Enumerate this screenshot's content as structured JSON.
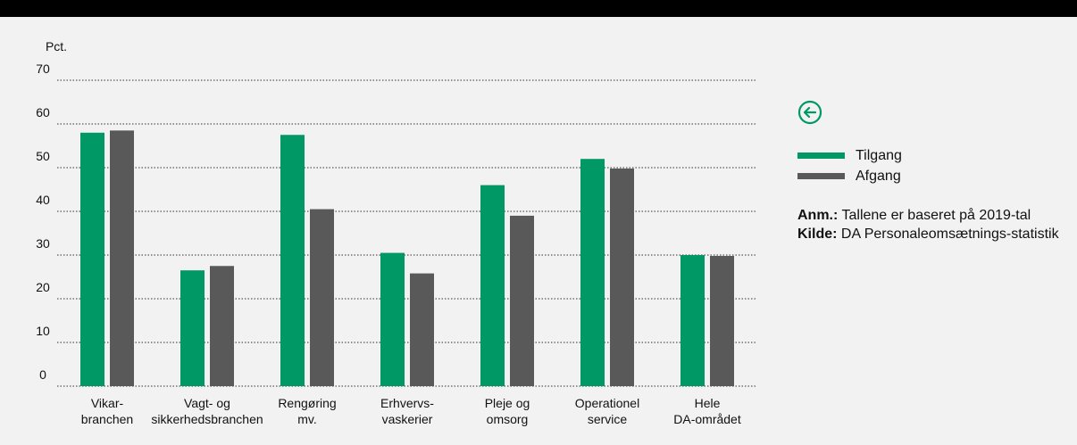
{
  "colors": {
    "tilgang": "#009966",
    "afgang": "#595959",
    "grid": "#333333"
  },
  "icons": {
    "back": "arrow-left-circle-icon"
  },
  "legend": {
    "tilgang_label": "Tilgang",
    "afgang_label": "Afgang"
  },
  "notes": {
    "anm_label": "Anm.:",
    "anm_text": "Tallene er baseret på 2019-tal",
    "kilde_label": "Kilde:",
    "kilde_text": "DA Personaleomsætnings-statistik"
  },
  "chart_data": {
    "type": "bar",
    "ylabel": "Pct.",
    "ylim": [
      0,
      70
    ],
    "yticks": [
      0,
      10,
      20,
      30,
      40,
      50,
      60,
      70
    ],
    "grid": true,
    "legend_position": "right",
    "categories": [
      [
        "Vikar-",
        "branchen"
      ],
      [
        "Vagt- og",
        "sikkerhedsbranchen"
      ],
      [
        "Rengøring",
        "mv."
      ],
      [
        "Erhvervs-",
        "vaskerier"
      ],
      [
        "Pleje og",
        "omsorg"
      ],
      [
        "Operationel",
        "service"
      ],
      [
        "Hele",
        "DA-området"
      ]
    ],
    "series": [
      {
        "name": "Tilgang",
        "values": [
          58,
          26.5,
          57.5,
          30.5,
          46,
          52,
          30
        ]
      },
      {
        "name": "Afgang",
        "values": [
          58.5,
          27.5,
          40.5,
          25.8,
          39,
          49.8,
          29.8
        ]
      }
    ]
  }
}
